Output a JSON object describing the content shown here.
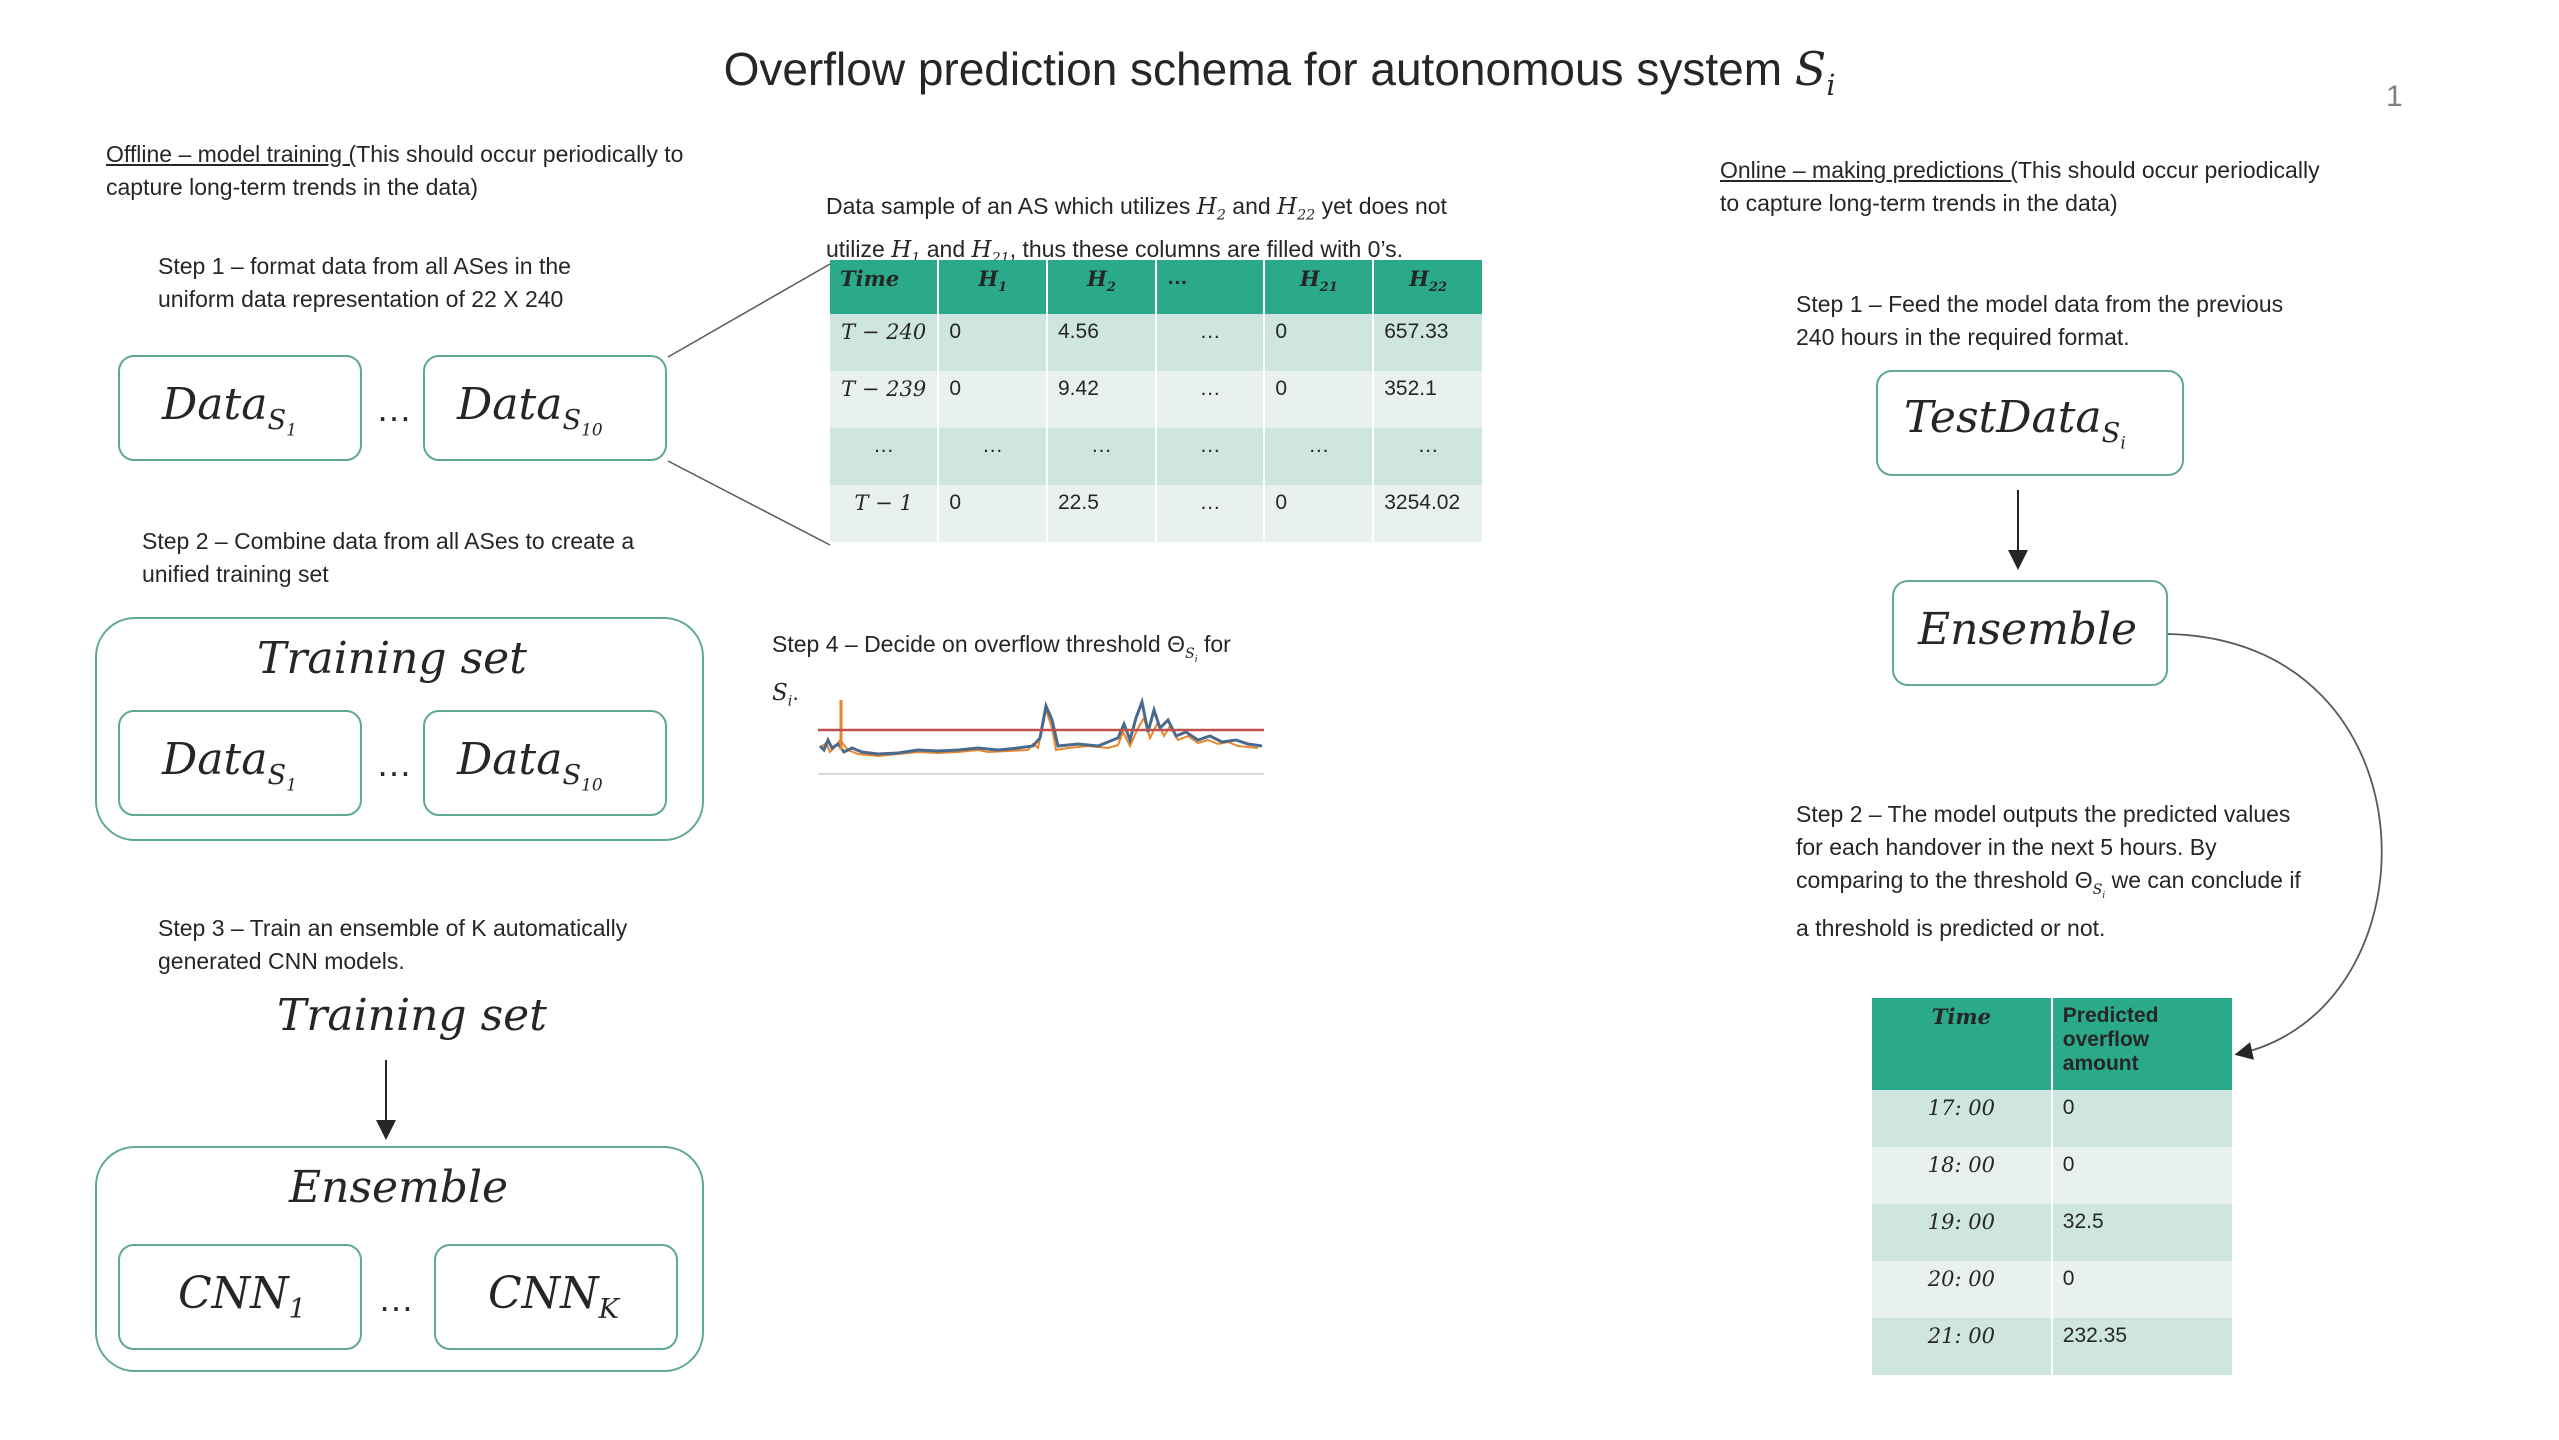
{
  "title": "Overflow prediction schema for autonomous system",
  "title_math": "S",
  "title_sub": "i",
  "page_number": "1",
  "offline": {
    "heading_underlined": "Offline – model training (",
    "heading_rest": "This should occur periodically to capture long-term trends in the data)",
    "step1": "Step 1 – format data from all ASes in the uniform data representation of 22 X 240",
    "step2": "Step 2 – Combine data from all ASes to create a unified training set",
    "step3": "Step 3 – Train an ensemble of K automatically generated CNN models.",
    "step4_prefix": "Step 4 – Decide on overflow threshold Θ",
    "step4_suffix": "for",
    "data_label": "Data",
    "s1_sub": "S",
    "s1_subsub": "1",
    "s10_subsub": "10",
    "ellipsis": "…",
    "training_set": "Training set",
    "ensemble": "Ensemble",
    "cnn_label": "CNN",
    "cnn1_sub": "1",
    "cnnk_sub": "K"
  },
  "sample": {
    "caption_1": "Data sample of an AS which utilizes",
    "caption_2": "and",
    "caption_3": "yet does not utilize",
    "caption_4": "and",
    "caption_5": ", thus these columns are filled with 0’s.",
    "headers": [
      "Time",
      "H1",
      "H2",
      "…",
      "H21",
      "H22"
    ],
    "rows": [
      [
        "T − 240",
        "0",
        "4.56",
        "…",
        "0",
        "657.33"
      ],
      [
        "T − 239",
        "0",
        "9.42",
        "…",
        "0",
        "352.1"
      ],
      [
        "…",
        "…",
        "…",
        "…",
        "…",
        "…"
      ],
      [
        "T − 1",
        "0",
        "22.5",
        "…",
        "0",
        "3254.02"
      ]
    ]
  },
  "online": {
    "heading_underlined": "Online – making predictions (",
    "heading_rest": "This should occur periodically to capture long-term trends in the data)",
    "step1": "Step 1 – Feed the model data from the previous 240 hours in the required format.",
    "test_data": "TestData",
    "ensemble": "Ensemble",
    "step2_a": "Step 2 – The model outputs the predicted values for each handover in the next 5 hours. By comparing to the threshold Θ",
    "step2_b": "we can conclude if a threshold is predicted or not.",
    "table_headers": [
      "Time",
      "Predicted overflow amount"
    ],
    "table_rows": [
      [
        "17: 00",
        "0"
      ],
      [
        "18: 00",
        "0"
      ],
      [
        "19: 00",
        "32.5"
      ],
      [
        "20: 00",
        "0"
      ],
      [
        "21: 00",
        "232.35"
      ]
    ]
  },
  "colors": {
    "box_border": "#5ea895",
    "table_header": "#2aaa8a",
    "row_dark": "#cfe5df",
    "row_light": "#e8f1ee",
    "threshold_line": "#c0504d",
    "series_blue": "#4a6a8c",
    "series_orange": "#e8862d"
  }
}
